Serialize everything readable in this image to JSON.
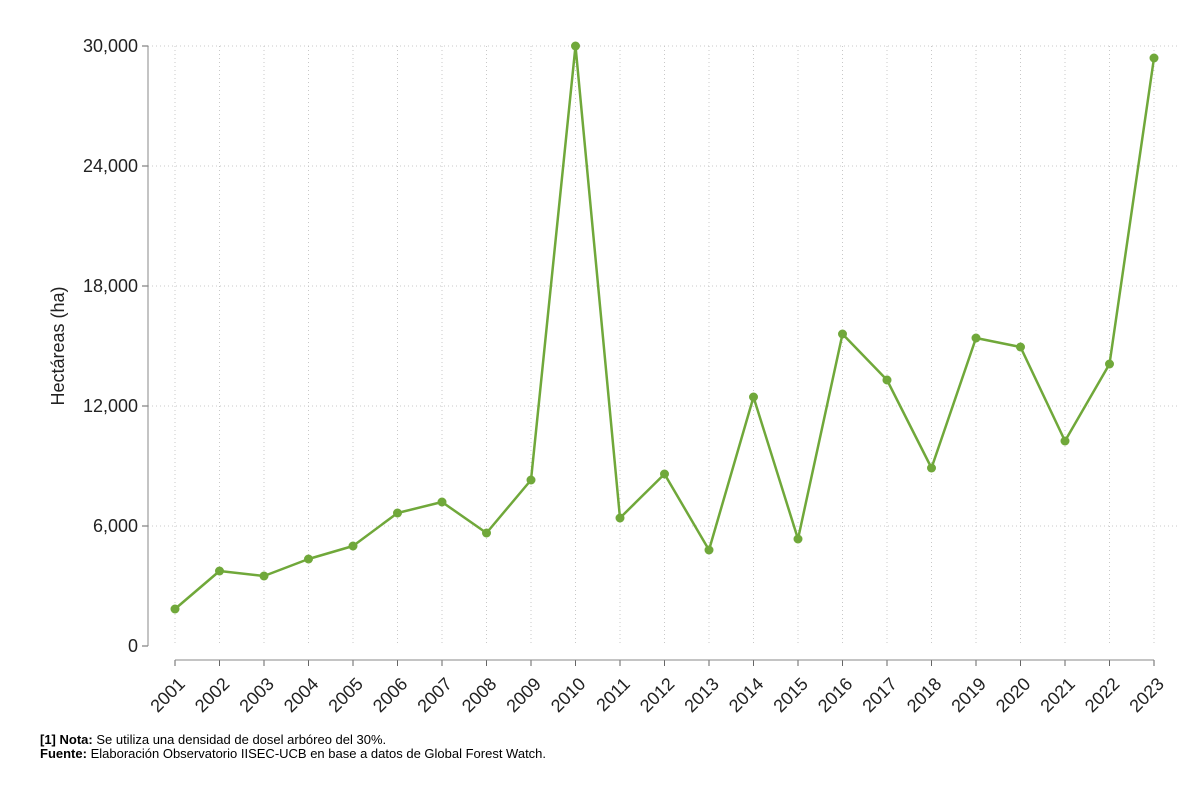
{
  "chart_data": {
    "type": "line",
    "title": "",
    "xlabel": "",
    "ylabel": "Hectáreas (ha)",
    "ylim": [
      0,
      30000
    ],
    "yticks": [
      0,
      6000,
      12000,
      18000,
      24000,
      30000
    ],
    "ytick_labels": [
      "0",
      "6,000",
      "12,000",
      "18,000",
      "24,000",
      "30,000"
    ],
    "grid": true,
    "legend": "none",
    "line_color": "#70a83a",
    "x": [
      "2001",
      "2002",
      "2003",
      "2004",
      "2005",
      "2006",
      "2007",
      "2008",
      "2009",
      "2010",
      "2011",
      "2012",
      "2013",
      "2014",
      "2015",
      "2016",
      "2017",
      "2018",
      "2019",
      "2020",
      "2021",
      "2022",
      "2023"
    ],
    "series": [
      {
        "values": [
          1850,
          3750,
          3500,
          4350,
          5000,
          6650,
          7200,
          5650,
          8300,
          30000,
          6400,
          8600,
          4800,
          12450,
          5350,
          15600,
          13300,
          8900,
          15400,
          14950,
          10250,
          14100,
          29400
        ]
      }
    ]
  },
  "notes": {
    "nota_prefix": "[1] Nota:",
    "nota_text": " Se utiliza una densidad de dosel arbóreo del 30%.",
    "fuente_prefix": "Fuente:",
    "fuente_text": " Elaboración Observatorio IISEC-UCB en base a datos de Global Forest Watch."
  }
}
